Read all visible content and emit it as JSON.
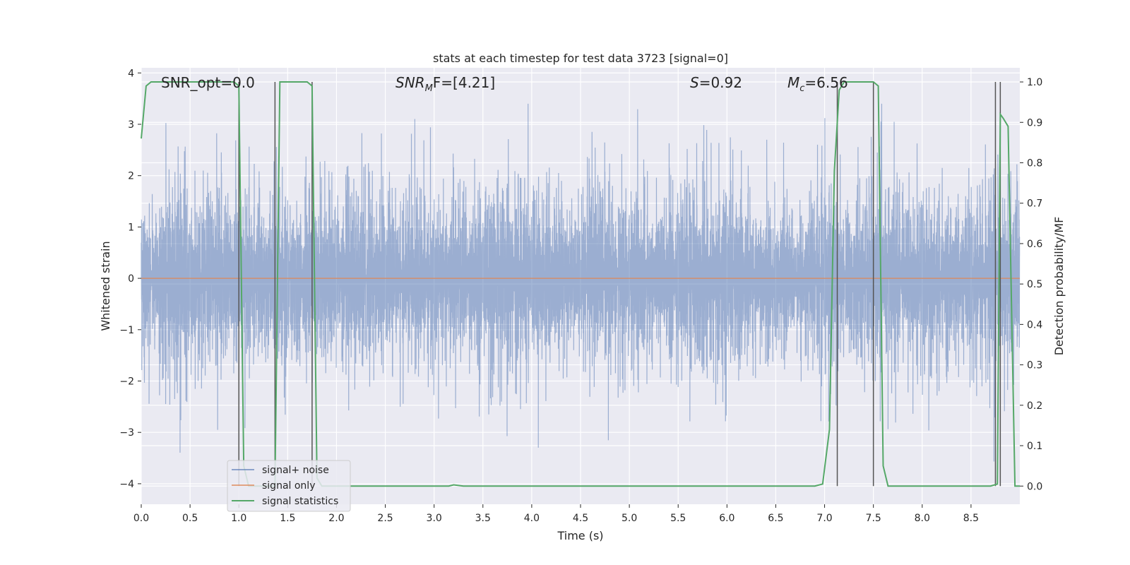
{
  "chart_data": {
    "type": "line",
    "title": "stats at each timestep for test data 3723 [signal=0]",
    "xlabel": "Time (s)",
    "ylabel": "Whitened strain",
    "y2label": "Detection probability/MF",
    "xlim": [
      0.0,
      9.0
    ],
    "ylim": [
      -4.4,
      4.1
    ],
    "y2lim": [
      -0.045,
      1.035
    ],
    "xticks": [
      "0.0",
      "0.5",
      "1.0",
      "1.5",
      "2.0",
      "2.5",
      "3.0",
      "3.5",
      "4.0",
      "4.5",
      "5.0",
      "5.5",
      "6.0",
      "6.5",
      "7.0",
      "7.5",
      "8.0",
      "8.5"
    ],
    "xtick_values": [
      0.0,
      0.5,
      1.0,
      1.5,
      2.0,
      2.5,
      3.0,
      3.5,
      4.0,
      4.5,
      5.0,
      5.5,
      6.0,
      6.5,
      7.0,
      7.5,
      8.0,
      8.5
    ],
    "yticks": [
      "4",
      "3",
      "2",
      "1",
      "0",
      "−1",
      "−2",
      "−3",
      "−4"
    ],
    "ytick_values": [
      4,
      3,
      2,
      1,
      0,
      -1,
      -2,
      -3,
      -4
    ],
    "y2ticks": [
      "1.0",
      "0.9",
      "0.8",
      "0.7",
      "0.6",
      "0.5",
      "0.4",
      "0.3",
      "0.2",
      "0.1",
      "0.0"
    ],
    "y2tick_values": [
      1.0,
      0.9,
      0.8,
      0.7,
      0.6,
      0.5,
      0.4,
      0.3,
      0.2,
      0.1,
      0.0
    ],
    "grid": true,
    "legend_position": "bottom-left",
    "annotations": {
      "snr_opt": "SNR_opt=0.0",
      "snr_mf_base": "SNR",
      "snr_mf_sub": "M",
      "snr_mf_rest": "F=[4.21]",
      "s_label": "S",
      "s_value": "=0.92",
      "mc_label": "M",
      "mc_sub": "c",
      "mc_value": "=6.56"
    },
    "series": [
      {
        "name": "signal+ noise",
        "color": "#4c72b0",
        "alpha": 0.5,
        "description_range": [
          -3.9,
          3.4
        ]
      },
      {
        "name": "signal only",
        "color": "#dd8452",
        "x": [
          0.0,
          9.0
        ],
        "y": [
          0.0,
          0.0
        ]
      },
      {
        "name": "signal statistics",
        "color": "#55a868",
        "axis": "right",
        "x": [
          0.0,
          0.05,
          0.1,
          0.15,
          0.2,
          0.3,
          0.5,
          0.7,
          0.9,
          0.95,
          1.0,
          1.05,
          1.1,
          1.2,
          1.3,
          1.37,
          1.42,
          1.5,
          1.7,
          1.75,
          1.8,
          1.85,
          1.9,
          2.0,
          2.5,
          3.0,
          3.15,
          3.2,
          3.3,
          3.5,
          4.0,
          5.0,
          6.0,
          6.5,
          6.9,
          6.98,
          7.05,
          7.1,
          7.15,
          7.2,
          7.25,
          7.3,
          7.5,
          7.55,
          7.6,
          7.65,
          8.0,
          8.5,
          8.7,
          8.77,
          8.8,
          8.83,
          8.88,
          8.95,
          9.0
        ],
        "y": [
          0.86,
          0.99,
          1.0,
          1.0,
          1.0,
          1.0,
          1.0,
          1.0,
          1.0,
          1.0,
          0.99,
          0.05,
          0.0,
          0.0,
          0.0,
          0.0,
          1.0,
          1.0,
          1.0,
          0.99,
          0.02,
          0.0,
          0.0,
          0.0,
          0.0,
          0.0,
          0.0,
          0.003,
          0.0,
          0.0,
          0.0,
          0.0,
          0.0,
          0.0,
          0.0,
          0.005,
          0.14,
          0.78,
          0.98,
          1.0,
          1.0,
          1.0,
          1.0,
          0.99,
          0.05,
          0.0,
          0.0,
          0.0,
          0.0,
          0.005,
          0.92,
          0.91,
          0.89,
          0.0,
          0.0
        ]
      }
    ],
    "vertical_lines": [
      1.0,
      1.37,
      1.75,
      7.13,
      7.5,
      8.75,
      8.8
    ]
  }
}
